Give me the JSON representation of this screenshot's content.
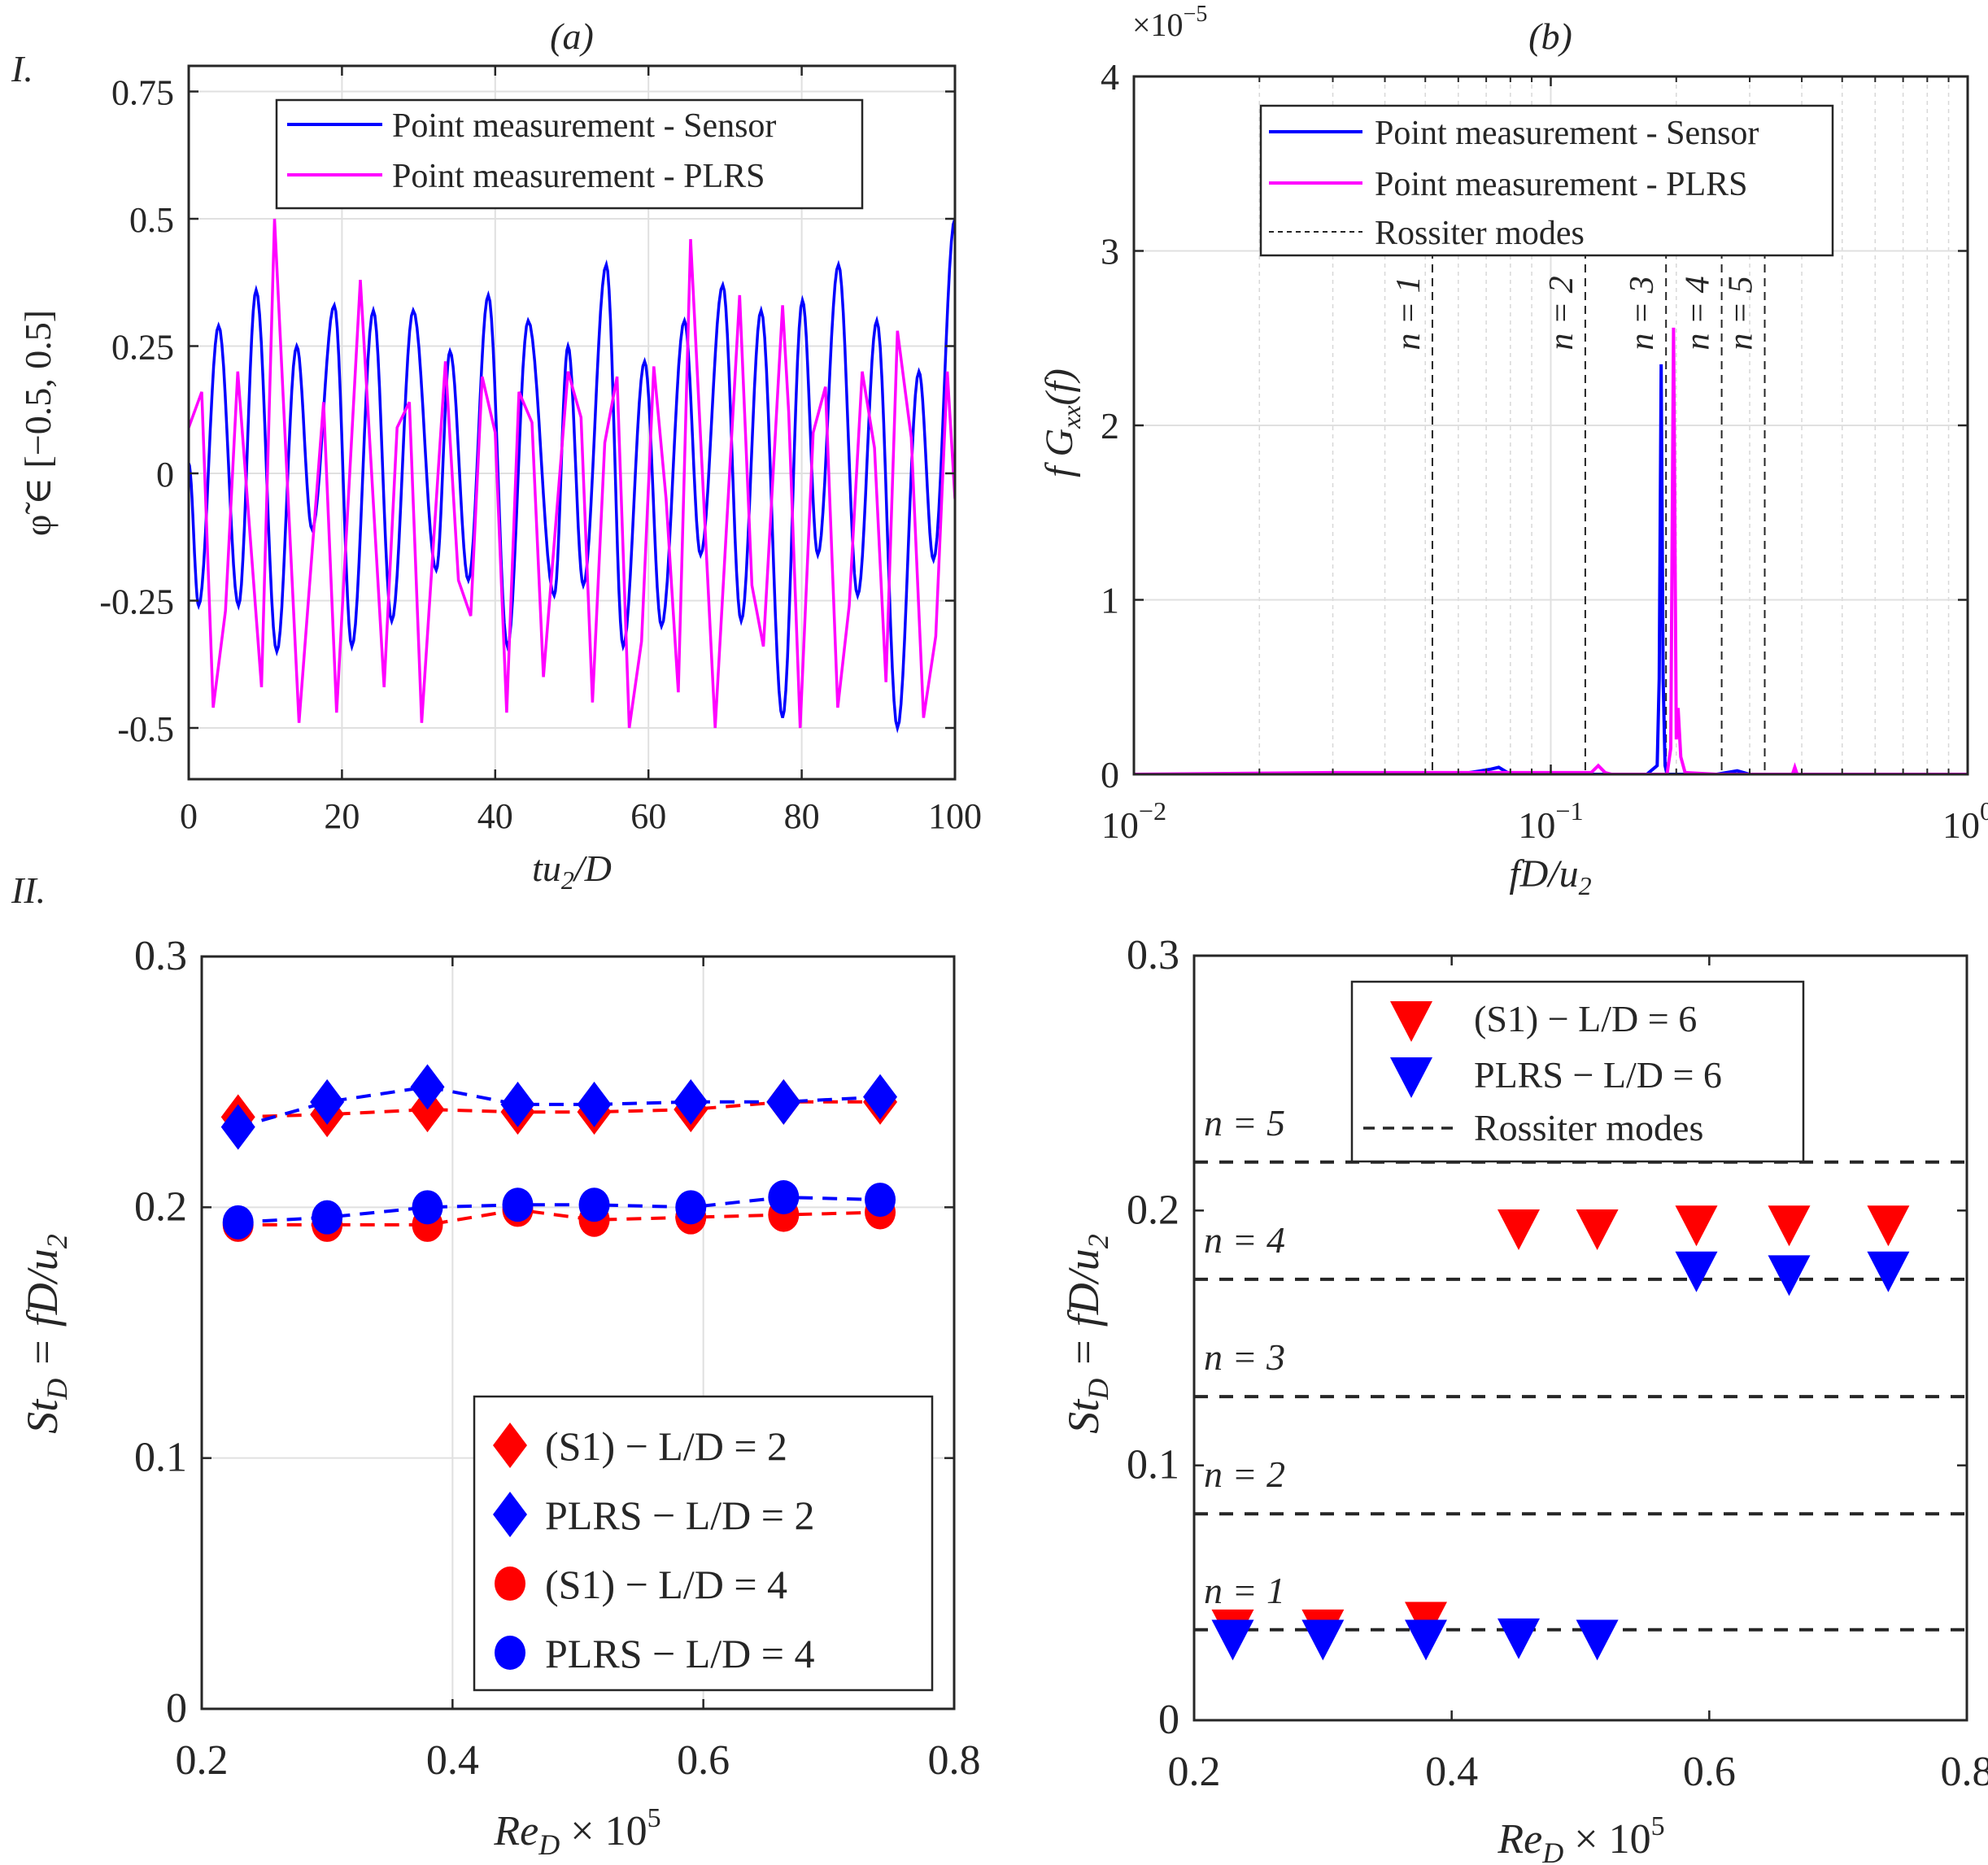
{
  "figure": {
    "row_labels": [
      "I.",
      "II."
    ],
    "panel_titles": [
      "(a)",
      "(b)"
    ]
  },
  "colors": {
    "sensor": "#0000ff",
    "plrs": "#ff00ff",
    "s1": "#ff0000",
    "plrs_marker": "#0000ff",
    "rossiter": "#262626",
    "grid": "#e0e0e0",
    "axis": "#262626"
  },
  "chart_data": [
    {
      "id": "panel-a",
      "type": "line",
      "title": "(a)",
      "xlabel": "tu2/D",
      "ylabel": "φ̃ ∈ [−0.5, 0.5]",
      "xlim": [
        0,
        100
      ],
      "ylim": [
        -0.6,
        0.8
      ],
      "xticks": [
        0,
        20,
        40,
        60,
        80,
        100
      ],
      "xtick_labels": [
        "0",
        "20",
        "40",
        "60",
        "80",
        "100"
      ],
      "yticks": [
        -0.5,
        -0.25,
        0,
        0.25,
        0.5,
        0.75
      ],
      "ytick_labels": [
        "-0.5",
        "-0.25",
        "0",
        "0.25",
        "0.5",
        "0.75"
      ],
      "grid": true,
      "legend": {
        "position": "top-center",
        "entries": [
          "Point measurement - Sensor",
          "Point measurement - PLRS"
        ]
      },
      "series": [
        {
          "name": "Point measurement - Sensor",
          "color": "#0000ff",
          "smooth": true,
          "x": [
            0,
            1.3,
            3.9,
            6.5,
            8.8,
            11.5,
            14.1,
            16.1,
            19,
            21.3,
            24.1,
            26.5,
            29.3,
            32.3,
            34.1,
            36.5,
            39.1,
            41.6,
            44.3,
            47.7,
            49.5,
            51.5,
            54.5,
            56.7,
            59.5,
            61.7,
            64.7,
            66.8,
            69.7,
            72.1,
            74.7,
            77.5,
            80.1,
            82.1,
            84.8,
            87.3,
            89.8,
            92.5,
            95.3,
            97.2,
            100
          ],
          "y": [
            0.02,
            -0.26,
            0.29,
            -0.26,
            0.36,
            -0.35,
            0.25,
            -0.11,
            0.33,
            -0.34,
            0.32,
            -0.29,
            0.32,
            -0.19,
            0.24,
            -0.21,
            0.35,
            -0.34,
            0.3,
            -0.24,
            0.25,
            -0.22,
            0.41,
            -0.34,
            0.22,
            -0.3,
            0.3,
            -0.16,
            0.37,
            -0.29,
            0.32,
            -0.48,
            0.34,
            -0.16,
            0.41,
            -0.24,
            0.3,
            -0.5,
            0.2,
            -0.17,
            0.5
          ]
        },
        {
          "name": "Point measurement - PLRS",
          "color": "#ff00ff",
          "smooth": false,
          "x": [
            0,
            1.7,
            3.2,
            4.8,
            6.4,
            9.5,
            11.2,
            14.4,
            17.6,
            19.3,
            22.4,
            25.5,
            27.2,
            28.8,
            30.4,
            33.5,
            35.2,
            36.8,
            38.3,
            40,
            41.5,
            43.1,
            44.8,
            46.3,
            49.5,
            51.2,
            52.7,
            54.3,
            55.9,
            57.5,
            59.1,
            60.7,
            62.3,
            63.9,
            65.5,
            68.7,
            71.9,
            73.5,
            75,
            77.5,
            78.3,
            79.8,
            81.5,
            83.1,
            84.7,
            86.2,
            87.9,
            89.5,
            91,
            92.5,
            94.3,
            95.9,
            97.5,
            99,
            100
          ],
          "y": [
            0.09,
            0.16,
            -0.46,
            -0.27,
            0.2,
            -0.42,
            0.5,
            -0.49,
            0.14,
            -0.47,
            0.38,
            -0.42,
            0.09,
            0.14,
            -0.49,
            0.22,
            -0.21,
            -0.28,
            0.19,
            0.08,
            -0.47,
            0.16,
            0.1,
            -0.4,
            0.2,
            0.11,
            -0.45,
            0.06,
            0.19,
            -0.5,
            -0.33,
            0.21,
            -0.05,
            -0.43,
            0.46,
            -0.5,
            0.35,
            -0.22,
            -0.34,
            0.33,
            0.12,
            -0.5,
            0.08,
            0.17,
            -0.46,
            -0.26,
            0.2,
            0.05,
            -0.41,
            0.28,
            0.07,
            -0.48,
            -0.32,
            0.2,
            -0.05
          ]
        }
      ]
    },
    {
      "id": "panel-b",
      "type": "line",
      "title": "(b)",
      "xlabel": "fD/u2",
      "ylabel": "f Gxx(f)",
      "xscale": "log",
      "xlim": [
        0.01,
        1
      ],
      "ylim": [
        0,
        4
      ],
      "yscale_multiplier": "×10^-5",
      "xticks": [
        0.01,
        0.1,
        1
      ],
      "xtick_labels": [
        "10^-2",
        "10^-1",
        "10^0"
      ],
      "yticks": [
        0,
        1,
        2,
        3,
        4
      ],
      "ytick_labels": [
        "0",
        "1",
        "2",
        "3",
        "4"
      ],
      "grid": true,
      "legend": {
        "position": "top-center",
        "entries": [
          "Point measurement - Sensor",
          "Point measurement - PLRS",
          "Rossiter modes"
        ]
      },
      "series": [
        {
          "name": "Point measurement - Sensor",
          "color": "#0000ff",
          "x": [
            0.01,
            0.06,
            0.068,
            0.072,
            0.075,
            0.08,
            0.17,
            0.18,
            0.182,
            0.184,
            0.186,
            0.188,
            0.19,
            0.2,
            0.25,
            0.28,
            0.3,
            1
          ],
          "y": [
            0,
            0,
            0.02,
            0.03,
            0.04,
            0,
            0,
            0.05,
            0.55,
            2.35,
            0.55,
            0.05,
            0,
            0,
            0,
            0.02,
            0,
            0
          ]
        },
        {
          "name": "Point measurement - PLRS",
          "color": "#ff00ff",
          "x": [
            0.01,
            0.03,
            0.05,
            0.1,
            0.125,
            0.13,
            0.135,
            0.14,
            0.19,
            0.194,
            0.197,
            0.2,
            0.202,
            0.205,
            0.21,
            0.25,
            0.38,
            0.385,
            0.39,
            1
          ],
          "y": [
            0,
            0.01,
            0.01,
            0.01,
            0.01,
            0.05,
            0.01,
            0,
            0,
            0.15,
            2.56,
            0.2,
            0.38,
            0.1,
            0.01,
            0,
            0,
            0.04,
            0,
            0
          ]
        }
      ],
      "rossiter_modes": [
        {
          "n": 1,
          "label": "n = 1",
          "x": 0.052
        },
        {
          "n": 2,
          "label": "n = 2",
          "x": 0.121
        },
        {
          "n": 3,
          "label": "n = 3",
          "x": 0.189
        },
        {
          "n": 4,
          "label": "n = 4",
          "x": 0.257
        },
        {
          "n": 5,
          "label": "n = 5",
          "x": 0.326
        }
      ]
    },
    {
      "id": "panel-c",
      "type": "scatter",
      "title": "",
      "xlabel": "ReD × 10^5",
      "ylabel": "StD = fD/u2",
      "xlim": [
        0.2,
        0.8
      ],
      "ylim": [
        0,
        0.3
      ],
      "xticks": [
        0.2,
        0.4,
        0.6,
        0.8
      ],
      "xtick_labels": [
        "0.2",
        "0.4",
        "0.6",
        "0.8"
      ],
      "yticks": [
        0,
        0.1,
        0.2,
        0.3
      ],
      "ytick_labels": [
        "0",
        "0.1",
        "0.2",
        "0.3"
      ],
      "grid": true,
      "legend": {
        "position": "lower-right",
        "entries": [
          "(S1) − L/D = 2",
          "PLRS − L/D = 2",
          "(S1) − L/D = 4",
          "PLRS − L/D = 4"
        ]
      },
      "x": [
        0.229,
        0.3,
        0.38,
        0.452,
        0.513,
        0.59,
        0.664,
        0.741
      ],
      "series": [
        {
          "name": "(S1) − L/D = 2",
          "marker": "diamond",
          "color": "#ff0000",
          "line": "dashed",
          "values": [
            0.236,
            0.237,
            0.239,
            0.238,
            0.238,
            0.239,
            0.242,
            0.242
          ]
        },
        {
          "name": "PLRS − L/D = 2",
          "marker": "diamond",
          "color": "#0000ff",
          "line": "dashed",
          "values": [
            0.232,
            0.242,
            0.248,
            0.241,
            0.241,
            0.242,
            0.242,
            0.244
          ]
        },
        {
          "name": "(S1) − L/D = 4",
          "marker": "circle",
          "color": "#ff0000",
          "line": "dashed",
          "values": [
            0.193,
            0.193,
            0.193,
            0.199,
            0.195,
            0.196,
            0.197,
            0.198
          ]
        },
        {
          "name": "PLRS − L/D = 4",
          "marker": "circle",
          "color": "#0000ff",
          "line": "dashed",
          "values": [
            0.194,
            0.196,
            0.2,
            0.201,
            0.201,
            0.2,
            0.204,
            0.203
          ]
        }
      ]
    },
    {
      "id": "panel-d",
      "type": "scatter",
      "title": "",
      "xlabel": "ReD × 10^5",
      "ylabel": "StD = fD/u2",
      "xlim": [
        0.2,
        0.8
      ],
      "ylim": [
        0,
        0.3
      ],
      "xticks": [
        0.2,
        0.4,
        0.6,
        0.8
      ],
      "xtick_labels": [
        "0.2",
        "0.4",
        "0.6",
        "0.8"
      ],
      "yticks": [
        0,
        0.1,
        0.2,
        0.3
      ],
      "ytick_labels": [
        "0",
        "0.1",
        "0.2",
        "0.3"
      ],
      "grid": false,
      "legend": {
        "position": "top-center",
        "entries": [
          "(S1) − L/D = 6",
          "PLRS − L/D = 6",
          "Rossiter modes"
        ]
      },
      "series": [
        {
          "name": "(S1) − L/D = 6",
          "marker": "triangle-down",
          "color": "#ff0000",
          "points": [
            [
              0.23,
              0.038
            ],
            [
              0.3,
              0.038
            ],
            [
              0.38,
              0.041
            ],
            [
              0.452,
              0.195
            ],
            [
              0.513,
              0.195
            ],
            [
              0.59,
              0.1965
            ],
            [
              0.662,
              0.1965
            ],
            [
              0.739,
              0.1965
            ]
          ]
        },
        {
          "name": "PLRS − L/D = 6",
          "marker": "triangle-down",
          "color": "#0000ff",
          "points": [
            [
              0.23,
              0.034
            ],
            [
              0.3,
              0.034
            ],
            [
              0.38,
              0.034
            ],
            [
              0.452,
              0.0345
            ],
            [
              0.513,
              0.034
            ],
            [
              0.59,
              0.1785
            ],
            [
              0.662,
              0.177
            ],
            [
              0.739,
              0.1785
            ]
          ]
        }
      ],
      "rossiter_modes": [
        {
          "n": 1,
          "label": "n = 1",
          "y": 0.0355
        },
        {
          "n": 2,
          "label": "n = 2",
          "y": 0.081
        },
        {
          "n": 3,
          "label": "n = 3",
          "y": 0.127
        },
        {
          "n": 4,
          "label": "n = 4",
          "y": 0.173
        },
        {
          "n": 5,
          "label": "n = 5",
          "y": 0.219
        }
      ]
    }
  ]
}
